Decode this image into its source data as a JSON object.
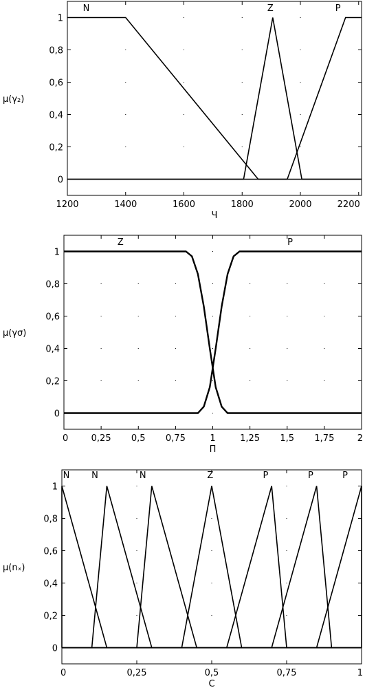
{
  "chart_data": [
    {
      "type": "line",
      "title": "",
      "xlabel": "Ч",
      "ylabel": "μ(γ₂)",
      "xlim": [
        1200,
        2210
      ],
      "ylim": [
        -0.1,
        1.1
      ],
      "xticks": [
        1200,
        1400,
        1600,
        1800,
        2000,
        2200
      ],
      "xtick_labels": [
        "1200",
        "1400",
        "1600",
        "1800",
        "2000",
        "2200"
      ],
      "yticks": [
        0,
        0.2,
        0.4,
        0.6,
        0.8,
        1
      ],
      "ytick_labels": [
        "0",
        "0,2",
        "0,4",
        "0,6",
        "0,8",
        "1"
      ],
      "grid": "dotted",
      "series": [
        {
          "name": "N",
          "x": [
            1200,
            1400,
            1855,
            2210
          ],
          "y": [
            1,
            1,
            0,
            0
          ],
          "label_at": [
            1265,
            1.04
          ]
        },
        {
          "name": "Z",
          "x": [
            1200,
            1805,
            1905,
            2005,
            2210
          ],
          "y": [
            0,
            0,
            1,
            0,
            0
          ],
          "label_at": [
            1897,
            1.04
          ]
        },
        {
          "name": "P",
          "x": [
            1200,
            1955,
            2155,
            2210
          ],
          "y": [
            0,
            0,
            1,
            1
          ],
          "label_at": [
            2129,
            1.04
          ]
        }
      ]
    },
    {
      "type": "line",
      "title": "",
      "xlabel": "П",
      "ylabel": "μ(γσ)",
      "xlim": [
        0,
        2
      ],
      "ylim": [
        -0.1,
        1.1
      ],
      "xticks": [
        0,
        0.25,
        0.5,
        0.75,
        1,
        1.25,
        1.5,
        1.75,
        2
      ],
      "xtick_labels": [
        "0",
        "0,25",
        "0,5",
        "0,75",
        "1",
        "1,25",
        "1,5",
        "1,75",
        "2"
      ],
      "yticks": [
        0,
        0.2,
        0.4,
        0.6,
        0.8,
        1
      ],
      "ytick_labels": [
        "0",
        "0,2",
        "0,4",
        "0,6",
        "0,8",
        "1"
      ],
      "grid": "dotted",
      "series": [
        {
          "name": "Z",
          "x": [
            0,
            0.82,
            0.86,
            0.9,
            0.94,
            0.98,
            1.02,
            1.06,
            1.1,
            2
          ],
          "y": [
            1,
            1,
            0.97,
            0.86,
            0.66,
            0.4,
            0.16,
            0.04,
            0,
            0
          ],
          "label_at": [
            0.38,
            1.04
          ]
        },
        {
          "name": "P",
          "x": [
            0,
            0.9,
            0.94,
            0.98,
            1.02,
            1.06,
            1.1,
            1.14,
            1.18,
            2
          ],
          "y": [
            0,
            0,
            0.04,
            0.16,
            0.4,
            0.66,
            0.86,
            0.97,
            1,
            1
          ],
          "label_at": [
            1.52,
            1.04
          ]
        }
      ]
    },
    {
      "type": "line",
      "title": "",
      "xlabel": "С",
      "ylabel": "μ(nₓ)",
      "xlim": [
        0,
        1
      ],
      "ylim": [
        -0.1,
        1.1
      ],
      "xticks": [
        0,
        0.25,
        0.5,
        0.75,
        1
      ],
      "xtick_labels": [
        "0",
        "0,25",
        "0,5",
        "0,75",
        "1"
      ],
      "yticks": [
        0,
        0.2,
        0.4,
        0.6,
        0.8,
        1
      ],
      "ytick_labels": [
        "0",
        "0,2",
        "0,4",
        "0,6",
        "0,8",
        "1"
      ],
      "grid": "dotted",
      "series": [
        {
          "name": "N",
          "x": [
            0,
            0,
            0.15,
            1
          ],
          "y": [
            0,
            1,
            0,
            0
          ],
          "label_at": [
            0.015,
            1.05
          ]
        },
        {
          "name": "N",
          "x": [
            0,
            0.1,
            0.15,
            0.3,
            1
          ],
          "y": [
            0,
            0,
            1,
            0,
            0
          ],
          "label_at": [
            0.11,
            1.05
          ]
        },
        {
          "name": "N",
          "x": [
            0,
            0.25,
            0.3,
            0.45,
            1
          ],
          "y": [
            0,
            0,
            1,
            0,
            0
          ],
          "label_at": [
            0.27,
            1.05
          ]
        },
        {
          "name": "Z",
          "x": [
            0,
            0.4,
            0.5,
            0.6,
            1
          ],
          "y": [
            0,
            0,
            1,
            0,
            0
          ],
          "label_at": [
            0.495,
            1.05
          ]
        },
        {
          "name": "P",
          "x": [
            0,
            0.55,
            0.7,
            0.75,
            1
          ],
          "y": [
            0,
            0,
            1,
            0,
            0
          ],
          "label_at": [
            0.68,
            1.05
          ]
        },
        {
          "name": "P",
          "x": [
            0,
            0.7,
            0.85,
            0.9,
            1
          ],
          "y": [
            0,
            0,
            1,
            0,
            0
          ],
          "label_at": [
            0.83,
            1.05
          ]
        },
        {
          "name": "P",
          "x": [
            0,
            0.85,
            1,
            1
          ],
          "y": [
            0,
            0,
            1,
            0
          ],
          "label_at": [
            0.945,
            1.05
          ]
        }
      ]
    }
  ]
}
